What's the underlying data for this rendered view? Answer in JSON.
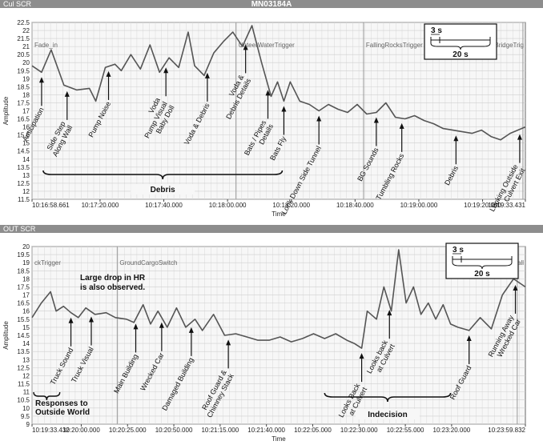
{
  "chart_data": [
    {
      "type": "line",
      "header_left": "Cul SCR",
      "title": "MN03184A",
      "xlabel": "Time",
      "ylabel": "Amplitude",
      "ylim": [
        11.5,
        22.5
      ],
      "yticks": [
        11.5,
        12,
        12.5,
        13,
        13.5,
        14,
        14.5,
        15,
        15.5,
        16,
        16.5,
        17,
        17.5,
        18,
        18.5,
        19,
        19.5,
        20,
        20.5,
        21,
        21.5,
        22,
        22.5
      ],
      "xlim": [
        0,
        274.77
      ],
      "xticks": [
        {
          "t": 0,
          "label": "10:16:58.661"
        },
        {
          "t": 21.339,
          "label": "10:17:20.000"
        },
        {
          "t": 41.339,
          "label": "10:17:40.000"
        },
        {
          "t": 61.339,
          "label": "10:18:00.000"
        },
        {
          "t": 81.339,
          "label": "10:18:20.000"
        },
        {
          "t": 101.339,
          "label": "10:18:40.000"
        },
        {
          "t": 121.339,
          "label": "10:19:00.000"
        },
        {
          "t": 141.339,
          "label": "10:19:20.000"
        },
        {
          "t": 154.77,
          "label": "10:19:33.431"
        }
      ],
      "grid": true,
      "series": [
        {
          "x": [
            0,
            3,
            6,
            10,
            14,
            18,
            20,
            23,
            26,
            28,
            31,
            34,
            37,
            40,
            43,
            46,
            49,
            51,
            54,
            57,
            60,
            63,
            66,
            69,
            72,
            75,
            77,
            79,
            81,
            84,
            87,
            90,
            93,
            96,
            99,
            102,
            105,
            108,
            111,
            114,
            117,
            120,
            123,
            126,
            129,
            132,
            135,
            138,
            141,
            144,
            147,
            150,
            154.77
          ],
          "y": [
            19.8,
            19.4,
            20.8,
            18.6,
            18.3,
            18.4,
            17.6,
            19.7,
            19.9,
            19.5,
            20.5,
            19.6,
            21.1,
            19.4,
            20.3,
            19.7,
            21.9,
            19.8,
            19.2,
            20.6,
            21.3,
            21.9,
            21.0,
            22.3,
            20.0,
            17.9,
            18.8,
            17.6,
            18.8,
            17.6,
            17.4,
            17.0,
            17.4,
            17.1,
            16.9,
            17.4,
            16.8,
            16.9,
            17.5,
            16.6,
            16.5,
            16.7,
            16.4,
            16.2,
            15.9,
            15.8,
            15.7,
            15.6,
            15.8,
            15.4,
            15.2,
            15.6,
            16.0
          ]
        }
      ],
      "trigger_labels": [
        {
          "t": 0,
          "label": "Fade_in"
        },
        {
          "t": 64,
          "label": "UnteerWaterTrigger"
        },
        {
          "t": 104,
          "label": "FallingRocksTrigger"
        },
        {
          "t": 154,
          "label": "BridgeTrig"
        }
      ],
      "annotations": [
        {
          "t": 3,
          "label": "Anticipation"
        },
        {
          "t": 11,
          "label": "Side Step\nAlong Wall"
        },
        {
          "t": 24,
          "label": "Pump Noise"
        },
        {
          "t": 42,
          "label": "Voda\nPump Visual\nBaby Doll"
        },
        {
          "t": 55,
          "label": "Voda & Debris"
        },
        {
          "t": 67,
          "label": "Voda &\nDebris Details"
        },
        {
          "t": 74,
          "label": "Bats / Pipes\nDetails"
        },
        {
          "t": 79,
          "label": "Bats Fly"
        },
        {
          "t": 90,
          "label": "Look Down Side Tunnel"
        },
        {
          "t": 108,
          "label": "BG Sounds"
        },
        {
          "t": 116,
          "label": "Tumbling Rocks"
        },
        {
          "t": 133,
          "label": "Debris"
        },
        {
          "t": 153,
          "label": "Looking Outside\nCulvert Exit"
        }
      ],
      "bracket_label": "Debris",
      "scale_box": {
        "small": "3 s",
        "large": "20 s"
      }
    },
    {
      "type": "line",
      "header_left": "OUT SCR",
      "xlabel": "Time",
      "ylabel": "Amplitude",
      "ylim": [
        9,
        20
      ],
      "yticks": [
        9,
        9.5,
        10,
        10.5,
        11,
        11.5,
        12,
        12.5,
        13,
        13.5,
        14,
        14.5,
        15,
        15.5,
        16,
        16.5,
        17,
        17.5,
        18,
        18.5,
        19,
        19.5,
        20
      ],
      "xlim": [
        0,
        266.4
      ],
      "xticks": [
        {
          "t": 0,
          "label": "10:19:33.432"
        },
        {
          "t": 26.568,
          "label": "10:20:00.000"
        },
        {
          "t": 51.568,
          "label": "10:20:25.000"
        },
        {
          "t": 76.568,
          "label": "10:20:50.000"
        },
        {
          "t": 101.568,
          "label": "10:21:15.000"
        },
        {
          "t": 126.568,
          "label": "10:21:40.000"
        },
        {
          "t": 151.568,
          "label": "10:22:05.000"
        },
        {
          "t": 176.568,
          "label": "10:22:30.000"
        },
        {
          "t": 201.568,
          "label": "10:22:55.000"
        },
        {
          "t": 226.568,
          "label": "10:23:20.000"
        },
        {
          "t": 266.4,
          "label": "10:23:59.832"
        }
      ],
      "grid": true,
      "series": [
        {
          "x": [
            0,
            5,
            10,
            13,
            17,
            21,
            25,
            29,
            34,
            40,
            45,
            51,
            55,
            60,
            64,
            68,
            73,
            78,
            83,
            88,
            92,
            98,
            104,
            110,
            116,
            122,
            128,
            134,
            140,
            146,
            152,
            158,
            164,
            170,
            174,
            178,
            181,
            186,
            190,
            194,
            198,
            202,
            206,
            210,
            214,
            218,
            222,
            226,
            230,
            236,
            242,
            248,
            254,
            260,
            266.4
          ],
          "y": [
            15.6,
            16.5,
            17.2,
            16.0,
            16.3,
            15.9,
            15.6,
            16.2,
            15.8,
            15.9,
            15.6,
            15.5,
            15.3,
            16.4,
            15.2,
            16.0,
            15.0,
            16.2,
            15.0,
            15.5,
            14.8,
            15.8,
            14.5,
            14.6,
            14.4,
            14.2,
            14.2,
            14.4,
            14.1,
            14.3,
            14.6,
            14.3,
            14.6,
            14.2,
            14.0,
            13.7,
            16.0,
            15.5,
            17.5,
            16.0,
            19.8,
            16.5,
            17.5,
            15.8,
            16.5,
            15.5,
            16.4,
            15.2,
            15.0,
            14.8,
            15.6,
            14.9,
            17.0,
            18.0,
            17.5
          ]
        }
      ],
      "trigger_labels": [
        {
          "t": 0,
          "label": "ckTrigger"
        },
        {
          "t": 46,
          "label": "GroundCargoSwitch"
        },
        {
          "t": 262,
          "label": "RoofFall"
        }
      ],
      "annotations": [
        {
          "t": 21,
          "label": "Truck Sound"
        },
        {
          "t": 32,
          "label": "Truck Visual"
        },
        {
          "t": 56,
          "label": "Main Building"
        },
        {
          "t": 70,
          "label": "Wrecked Car"
        },
        {
          "t": 86,
          "label": "Damaged Building"
        },
        {
          "t": 106,
          "label": "Roof Guard &\nChimney Stack"
        },
        {
          "t": 178,
          "label": "Looks Back\nat Culvert"
        },
        {
          "t": 193,
          "label": "Looks back\nat Culvert"
        },
        {
          "t": 236,
          "label": "Roof Guard"
        },
        {
          "t": 261,
          "label": "Running Away\nWrecked Car"
        }
      ],
      "note": [
        "Large drop in HR",
        "is also observed."
      ],
      "bracket_left_label": [
        "Responses to",
        "Outside World"
      ],
      "bracket_label": "Indecision",
      "scale_box": {
        "small": "3 s",
        "large": "20 s"
      }
    }
  ]
}
